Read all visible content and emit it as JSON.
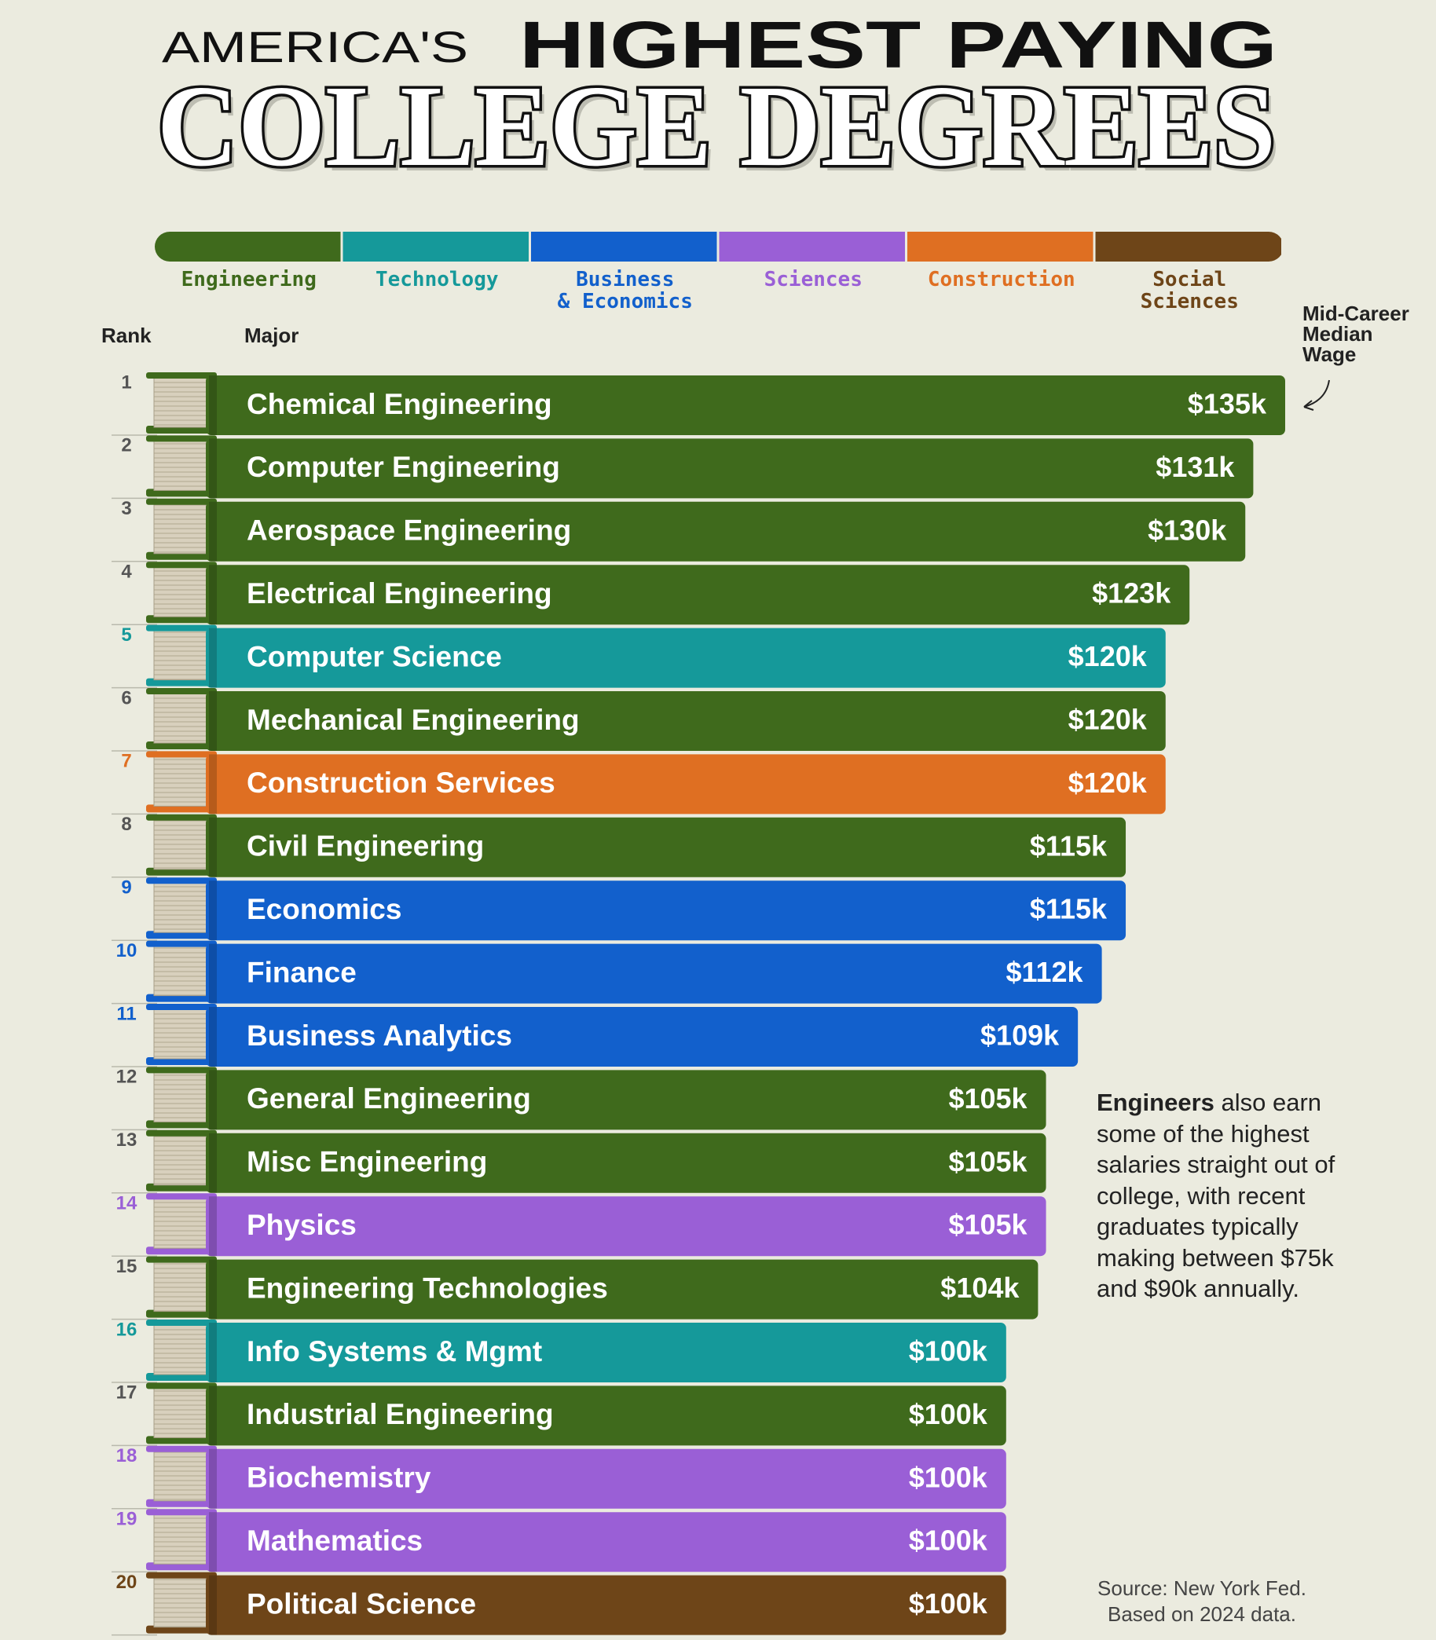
{
  "chart_data": {
    "type": "bar",
    "title_pre": "AMERICA'S",
    "title_main": "HIGHEST PAYING",
    "title_big": "COLLEGE DEGREES",
    "legend": [
      {
        "name": "Engineering",
        "color": "#3f6a1c"
      },
      {
        "name": "Technology",
        "color": "#15999a"
      },
      {
        "name": "Business\n& Economics",
        "color": "#1260cc"
      },
      {
        "name": "Sciences",
        "color": "#9a5fd6"
      },
      {
        "name": "Construction",
        "color": "#df6f22"
      },
      {
        "name": "Social\nSciences",
        "color": "#6e4518"
      }
    ],
    "rank_header": "Rank",
    "major_header": "Major",
    "value_header": "Mid-Career\nMedian\nWage",
    "ranks": [
      1,
      2,
      3,
      4,
      5,
      6,
      7,
      8,
      9,
      10,
      11,
      12,
      13,
      14,
      15,
      16,
      17,
      18,
      19,
      20
    ],
    "categories": [
      "Chemical Engineering",
      "Computer Engineering",
      "Aerospace Engineering",
      "Electrical Engineering",
      "Computer Science",
      "Mechanical Engineering",
      "Construction Services",
      "Civil Engineering",
      "Economics",
      "Finance",
      "Business Analytics",
      "General Engineering",
      "Misc Engineering",
      "Physics",
      "Engineering Technologies",
      "Info Systems & Mgmt",
      "Industrial Engineering",
      "Biochemistry",
      "Mathematics",
      "Political Science"
    ],
    "group": [
      0,
      0,
      0,
      0,
      1,
      0,
      4,
      0,
      2,
      2,
      2,
      0,
      0,
      3,
      0,
      1,
      0,
      3,
      3,
      5
    ],
    "values": [
      135,
      131,
      130,
      123,
      120,
      120,
      120,
      115,
      115,
      112,
      109,
      105,
      105,
      105,
      104,
      100,
      100,
      100,
      100,
      100
    ],
    "value_labels": [
      "$135k",
      "$131k",
      "$130k",
      "$123k",
      "$120k",
      "$120k",
      "$120k",
      "$115k",
      "$115k",
      "$112k",
      "$109k",
      "$105k",
      "$105k",
      "$105k",
      "$104k",
      "$100k",
      "$100k",
      "$100k",
      "$100k",
      "$100k"
    ],
    "xlim": [
      0,
      135
    ],
    "annotation_bold": "Engineers",
    "annotation": "also earn\nsome of the highest\nsalaries straight out of\ncollege, with recent\ngraduates typically\nmaking between $75k\nand $90k annually.",
    "source": "Source: New York Fed.\nBased on 2024 data."
  }
}
